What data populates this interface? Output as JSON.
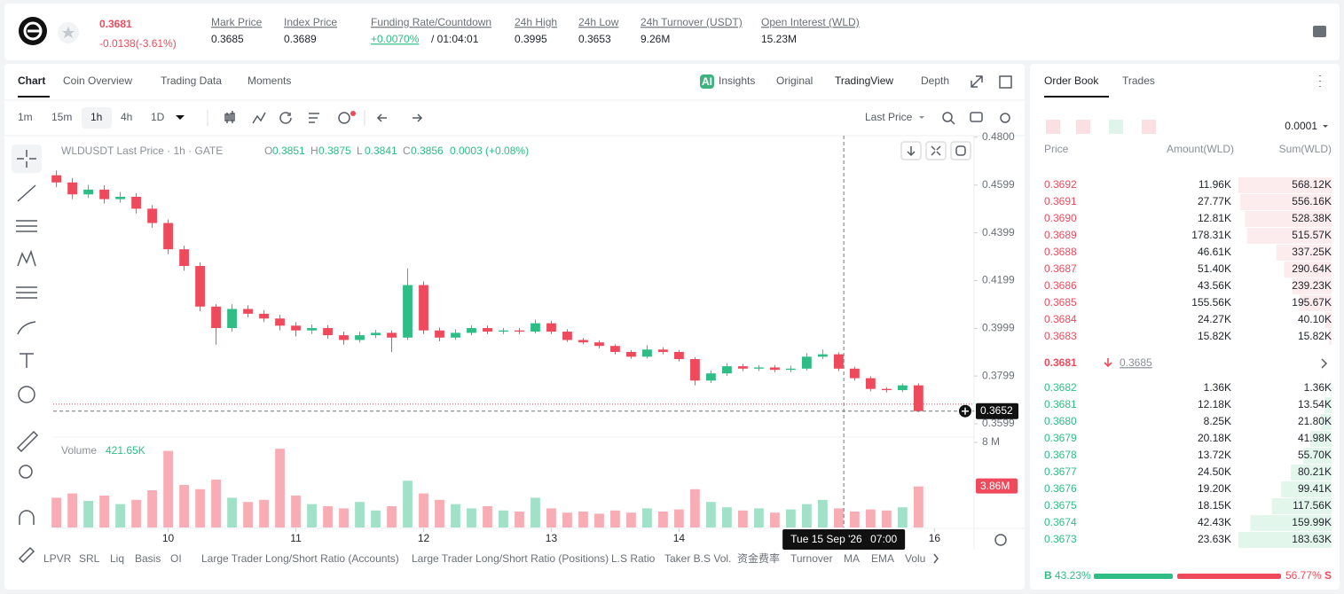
{
  "header": {
    "price": 0.3681,
    "change": "-0.0138(-3.61%)",
    "stats": [
      {
        "label": "Mark Price",
        "value": "0.3685"
      },
      {
        "label": "Index Price",
        "value": "0.3689"
      },
      {
        "label": "Funding Rate/Countdown",
        "value": "+0.0070%",
        "extra": "/ 01:04:01"
      },
      {
        "label": "24h High",
        "value": "0.3995"
      },
      {
        "label": "24h Low",
        "value": "0.3653"
      },
      {
        "label": "24h Turnover (USDT)",
        "value": "9.26M"
      },
      {
        "label": "Open Interest (WLD)",
        "value": "15.23M"
      }
    ]
  },
  "tabs": [
    "Chart",
    "Coin Overview",
    "Trading Data",
    "Moments"
  ],
  "view_tabs": [
    "Insights",
    "Original",
    "TradingView",
    "Depth"
  ],
  "intervals": [
    "1m",
    "15m",
    "1h",
    "4h",
    "1D"
  ],
  "price_type": "Last Price",
  "legend": {
    "symbol": "WLDUSDT Last Price · 1h · GATE",
    "ohlc": [
      {
        "key": "O",
        "value": "0.3851"
      },
      {
        "key": "H",
        "value": "0.3875"
      },
      {
        "key": "L",
        "value": "0.3841"
      },
      {
        "key": "C",
        "value": "0.3856"
      }
    ],
    "change": "0.0003 (+0.08%)"
  },
  "volume_legend": {
    "label": "Volume",
    "value": "421.65K"
  },
  "crosshair": {
    "price": 0.3652,
    "x": 15.29,
    "date": "Tue 15 Sep '26",
    "time": "07:00"
  },
  "indicators": [
    "LPVR",
    "SRL",
    "Liq",
    "Basis",
    "OI",
    "Large Trader Long/Short Ratio (Accounts)",
    "Large Trader Long/Short Ratio (Positions)",
    "L.S Ratio",
    "Taker B.S Vol.",
    "资金费率",
    "Turnover",
    "MA",
    "EMA",
    "Volu"
  ],
  "chart_data": {
    "type": "candlestick",
    "up_color": "#2ebd85",
    "down_color": "#ef4a5c",
    "grid": false,
    "x": [
      9.125,
      9.25,
      9.375,
      9.5,
      9.625,
      9.75,
      9.875,
      10,
      10.125,
      10.25,
      10.375,
      10.5,
      10.625,
      10.75,
      10.875,
      11,
      11.125,
      11.25,
      11.375,
      11.5,
      11.625,
      11.75,
      11.875,
      12,
      12.125,
      12.25,
      12.375,
      12.5,
      12.625,
      12.75,
      12.875,
      13,
      13.125,
      13.25,
      13.375,
      13.5,
      13.625,
      13.75,
      13.875,
      14,
      14.125,
      14.25,
      14.375,
      14.5,
      14.625,
      14.75,
      14.875,
      15,
      15.125,
      15.25,
      15.375,
      15.5,
      15.625,
      15.75,
      15.875
    ],
    "open": [
      0.464,
      0.461,
      0.456,
      0.458,
      0.454,
      0.455,
      0.45,
      0.444,
      0.433,
      0.426,
      0.409,
      0.4,
      0.408,
      0.406,
      0.404,
      0.401,
      0.399,
      0.4,
      0.397,
      0.395,
      0.397,
      0.398,
      0.396,
      0.418,
      0.399,
      0.396,
      0.398,
      0.4,
      0.3985,
      0.399,
      0.3985,
      0.402,
      0.3985,
      0.395,
      0.394,
      0.3925,
      0.39,
      0.388,
      0.391,
      0.39,
      0.387,
      0.378,
      0.381,
      0.384,
      0.383,
      0.3835,
      0.3825,
      0.383,
      0.388,
      0.389,
      0.383,
      0.379,
      0.3745,
      0.374,
      0.376
    ],
    "high": [
      0.466,
      0.4628,
      0.46,
      0.4598,
      0.457,
      0.4565,
      0.4515,
      0.4455,
      0.4345,
      0.4275,
      0.41,
      0.41,
      0.4095,
      0.4075,
      0.4055,
      0.4025,
      0.4015,
      0.4012,
      0.3985,
      0.3985,
      0.3992,
      0.399,
      0.425,
      0.4195,
      0.4002,
      0.3995,
      0.4012,
      0.401,
      0.4,
      0.4,
      0.4035,
      0.403,
      0.3995,
      0.3958,
      0.3948,
      0.3932,
      0.3908,
      0.3928,
      0.392,
      0.3908,
      0.3878,
      0.3822,
      0.3852,
      0.385,
      0.3845,
      0.3845,
      0.3842,
      0.3895,
      0.391,
      0.3898,
      0.3838,
      0.3798,
      0.3752,
      0.3768,
      0.3768
    ],
    "low": [
      0.459,
      0.454,
      0.4545,
      0.4522,
      0.4525,
      0.448,
      0.442,
      0.431,
      0.424,
      0.407,
      0.393,
      0.3985,
      0.4045,
      0.4025,
      0.399,
      0.3965,
      0.3975,
      0.3955,
      0.393,
      0.394,
      0.3958,
      0.39,
      0.395,
      0.3975,
      0.3945,
      0.395,
      0.397,
      0.3975,
      0.3975,
      0.3975,
      0.3978,
      0.3975,
      0.3942,
      0.3932,
      0.3915,
      0.389,
      0.3872,
      0.3872,
      0.389,
      0.386,
      0.376,
      0.377,
      0.38,
      0.382,
      0.382,
      0.3815,
      0.3815,
      0.3822,
      0.387,
      0.382,
      0.378,
      0.3735,
      0.373,
      0.3732,
      0.3648
    ],
    "close": [
      0.461,
      0.456,
      0.458,
      0.454,
      0.455,
      0.45,
      0.444,
      0.433,
      0.426,
      0.409,
      0.4,
      0.408,
      0.406,
      0.404,
      0.401,
      0.399,
      0.4,
      0.397,
      0.395,
      0.397,
      0.398,
      0.396,
      0.418,
      0.399,
      0.396,
      0.398,
      0.4,
      0.3985,
      0.399,
      0.3985,
      0.402,
      0.3985,
      0.395,
      0.394,
      0.3925,
      0.39,
      0.388,
      0.391,
      0.39,
      0.387,
      0.378,
      0.381,
      0.384,
      0.383,
      0.3835,
      0.3825,
      0.383,
      0.388,
      0.389,
      0.383,
      0.379,
      0.3745,
      0.374,
      0.376,
      0.3652
    ],
    "xlim": [
      9.1,
      16.31
    ],
    "xticks": [
      10,
      11,
      12,
      13,
      14,
      16
    ],
    "ylim": [
      0.3547,
      0.4806
    ],
    "yticks": [
      0.3599,
      0.3799,
      0.3999,
      0.4199,
      0.4399,
      0.4599,
      {
        "value": 0.48,
        "label": "0.4800"
      }
    ],
    "volume": {
      "values": [
        2.8,
        3.2,
        2.5,
        3.0,
        2.2,
        2.6,
        3.5,
        7.2,
        4.0,
        3.6,
        4.5,
        2.8,
        2.4,
        2.6,
        7.4,
        3.0,
        2.2,
        2.0,
        1.8,
        2.4,
        1.6,
        2.0,
        4.4,
        3.2,
        2.6,
        2.2,
        1.8,
        2.0,
        1.6,
        1.5,
        2.8,
        1.8,
        1.4,
        1.5,
        1.3,
        1.6,
        1.4,
        1.8,
        1.5,
        1.7,
        3.6,
        2.4,
        1.9,
        1.6,
        1.8,
        1.4,
        1.7,
        2.2,
        2.6,
        1.8,
        1.5,
        1.7,
        1.6,
        1.9,
        3.86
      ],
      "ylim": [
        0,
        8
      ],
      "yticks": [
        {
          "value": 8,
          "label": "8 M"
        }
      ],
      "last_value_label": "3.86M"
    }
  },
  "order_book": {
    "tabs": [
      "Order Book",
      "Trades"
    ],
    "precision": "0.0001",
    "columns": [
      "Price",
      "Amount(WLD)",
      "Sum(WLD)"
    ],
    "asks": {
      "price": [
        "0.3692",
        "0.3691",
        "0.3690",
        "0.3689",
        "0.3688",
        "0.3687",
        "0.3686",
        "0.3685",
        "0.3684",
        "0.3683"
      ],
      "amount": [
        "11.96K",
        "27.77K",
        "12.81K",
        "178.31K",
        "46.61K",
        "51.40K",
        "43.56K",
        "155.56K",
        "24.27K",
        "15.82K"
      ],
      "sum": [
        568.12,
        556.16,
        528.38,
        515.57,
        337.25,
        290.64,
        239.23,
        195.67,
        40.1,
        15.82
      ],
      "sum_labels": [
        "568.12K",
        "556.16K",
        "528.38K",
        "515.57K",
        "337.25K",
        "290.64K",
        "239.23K",
        "195.67K",
        "40.10K",
        "15.82K"
      ]
    },
    "mid": {
      "price": "0.3681",
      "mark": "0.3685"
    },
    "bids": {
      "price": [
        "0.3682",
        "0.3681",
        "0.3680",
        "0.3679",
        "0.3678",
        "0.3677",
        "0.3676",
        "0.3675",
        "0.3674",
        "0.3673"
      ],
      "amount": [
        "1.36K",
        "12.18K",
        "8.25K",
        "20.18K",
        "13.72K",
        "24.50K",
        "19.20K",
        "18.15K",
        "42.43K",
        "23.63K"
      ],
      "sum": [
        1.36,
        13.54,
        21.8,
        41.98,
        55.7,
        80.21,
        99.41,
        117.56,
        159.99,
        183.63
      ],
      "sum_labels": [
        "1.36K",
        "13.54K",
        "21.80K",
        "41.98K",
        "55.70K",
        "80.21K",
        "99.41K",
        "117.56K",
        "159.99K",
        "183.63K"
      ]
    },
    "buy": {
      "letter": "B",
      "value": 43.23,
      "label": "43.23%"
    },
    "sell": {
      "letter": "S",
      "value": 56.77,
      "label": "56.77%"
    }
  }
}
